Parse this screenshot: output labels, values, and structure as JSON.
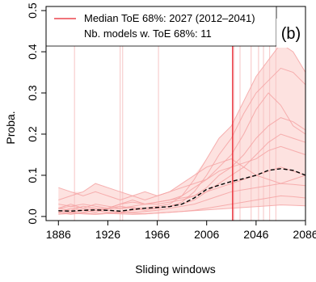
{
  "chart_data": {
    "type": "line",
    "title": "",
    "panel_label": "(b)",
    "xlabel": "Sliding windows",
    "ylabel": "Proba.",
    "xlim": [
      1876,
      2086
    ],
    "ylim": [
      -0.01,
      0.51
    ],
    "x_ticks": [
      1886,
      1926,
      1966,
      2006,
      2046,
      2086
    ],
    "y_ticks": [
      0.0,
      0.1,
      0.2,
      0.3,
      0.4,
      0.5
    ],
    "y_tick_labels": [
      "0.0",
      "0.1",
      "0.2",
      "0.3",
      "0.4",
      "0.5"
    ],
    "grid": false,
    "legend_position": "top-left",
    "legend": [
      "Median ToE 68%: 2027 (2012–2041)",
      "Nb. models w. ToE 68%: 11"
    ],
    "colors": {
      "median_toe_line": "#e8212b",
      "model_lines": "#f4a3a3",
      "toe_lines": "#f6c4c4",
      "band": "#fde2e0",
      "median_curve": "#000000"
    },
    "median_toe": {
      "year": 2027,
      "low": 2012,
      "high": 2041
    },
    "model_toe_years": [
      1899,
      1936,
      1938,
      1967,
      2028,
      2033,
      2042,
      2048,
      2052,
      2057,
      2062
    ],
    "median_curve": {
      "style": "dashed",
      "x": [
        1886,
        1896,
        1906,
        1916,
        1926,
        1936,
        1946,
        1956,
        1966,
        1976,
        1986,
        1996,
        2006,
        2016,
        2026,
        2036,
        2046,
        2056,
        2066,
        2076,
        2086
      ],
      "y": [
        0.014,
        0.013,
        0.015,
        0.016,
        0.015,
        0.013,
        0.017,
        0.02,
        0.022,
        0.024,
        0.03,
        0.045,
        0.066,
        0.076,
        0.085,
        0.092,
        0.1,
        0.112,
        0.116,
        0.112,
        0.1
      ]
    },
    "series": [
      {
        "x": [
          1886,
          1896,
          1906,
          1916,
          1926,
          1936,
          1946,
          1956,
          1966,
          1976,
          1986,
          1996,
          2006,
          2016,
          2026,
          2036,
          2046,
          2056,
          2066,
          2076,
          2086
        ],
        "y": [
          0.02,
          0.015,
          0.025,
          0.02,
          0.018,
          0.02,
          0.022,
          0.02,
          0.025,
          0.03,
          0.05,
          0.09,
          0.14,
          0.19,
          0.22,
          0.28,
          0.34,
          0.38,
          0.42,
          0.4,
          0.35
        ]
      },
      {
        "x": [
          1886,
          1896,
          1906,
          1916,
          1926,
          1936,
          1946,
          1956,
          1966,
          1976,
          1986,
          1996,
          2006,
          2016,
          2026,
          2036,
          2046,
          2056,
          2066,
          2076,
          2086
        ],
        "y": [
          0.01,
          0.02,
          0.015,
          0.01,
          0.02,
          0.025,
          0.02,
          0.015,
          0.02,
          0.025,
          0.035,
          0.06,
          0.1,
          0.15,
          0.19,
          0.25,
          0.3,
          0.33,
          0.36,
          0.35,
          0.32
        ]
      },
      {
        "x": [
          1886,
          1896,
          1906,
          1916,
          1926,
          1936,
          1946,
          1956,
          1966,
          1976,
          1986,
          1996,
          2006,
          2016,
          2026,
          2036,
          2046,
          2056,
          2066,
          2076,
          2086
        ],
        "y": [
          0.03,
          0.025,
          0.02,
          0.03,
          0.025,
          0.02,
          0.025,
          0.03,
          0.035,
          0.04,
          0.05,
          0.07,
          0.09,
          0.12,
          0.15,
          0.2,
          0.26,
          0.3,
          0.27,
          0.22,
          0.2
        ]
      },
      {
        "x": [
          1886,
          1896,
          1906,
          1916,
          1926,
          1936,
          1946,
          1956,
          1966,
          1976,
          1986,
          1996,
          2006,
          2016,
          2026,
          2036,
          2046,
          2056,
          2066,
          2076,
          2086
        ],
        "y": [
          0.02,
          0.03,
          0.02,
          0.015,
          0.02,
          0.03,
          0.04,
          0.03,
          0.03,
          0.035,
          0.04,
          0.05,
          0.07,
          0.1,
          0.12,
          0.15,
          0.19,
          0.22,
          0.24,
          0.23,
          0.21
        ]
      },
      {
        "x": [
          1886,
          1896,
          1906,
          1916,
          1926,
          1936,
          1946,
          1956,
          1966,
          1976,
          1986,
          1996,
          2006,
          2016,
          2026,
          2036,
          2046,
          2056,
          2066,
          2076,
          2086
        ],
        "y": [
          0.015,
          0.01,
          0.015,
          0.02,
          0.015,
          0.01,
          0.015,
          0.02,
          0.02,
          0.025,
          0.03,
          0.04,
          0.06,
          0.08,
          0.1,
          0.12,
          0.15,
          0.18,
          0.2,
          0.19,
          0.18
        ]
      },
      {
        "x": [
          1886,
          1896,
          1906,
          1916,
          1926,
          1936,
          1946,
          1956,
          1966,
          1976,
          1986,
          1996,
          2006,
          2016,
          2026,
          2036,
          2046,
          2056,
          2066,
          2076,
          2086
        ],
        "y": [
          0.07,
          0.06,
          0.05,
          0.06,
          0.05,
          0.04,
          0.05,
          0.06,
          0.05,
          0.06,
          0.07,
          0.08,
          0.09,
          0.11,
          0.12,
          0.13,
          0.14,
          0.16,
          0.17,
          0.16,
          0.15
        ]
      },
      {
        "x": [
          1886,
          1896,
          1906,
          1916,
          1926,
          1936,
          1946,
          1956,
          1966,
          1976,
          1986,
          1996,
          2006,
          2016,
          2026,
          2036,
          2046,
          2056,
          2066,
          2076,
          2086
        ],
        "y": [
          0.04,
          0.05,
          0.06,
          0.08,
          0.07,
          0.06,
          0.05,
          0.04,
          0.05,
          0.06,
          0.08,
          0.1,
          0.12,
          0.13,
          0.14,
          0.12,
          0.1,
          0.09,
          0.08,
          0.09,
          0.1
        ]
      },
      {
        "x": [
          1886,
          1896,
          1906,
          1916,
          1926,
          1936,
          1946,
          1956,
          1966,
          1976,
          1986,
          1996,
          2006,
          2016,
          2026,
          2036,
          2046,
          2056,
          2066,
          2076,
          2086
        ],
        "y": [
          0.01,
          0.005,
          0.01,
          0.015,
          0.01,
          0.008,
          0.01,
          0.012,
          0.015,
          0.02,
          0.025,
          0.03,
          0.04,
          0.05,
          0.06,
          0.065,
          0.07,
          0.075,
          0.08,
          0.078,
          0.075
        ]
      },
      {
        "x": [
          1886,
          1896,
          1906,
          1916,
          1926,
          1936,
          1946,
          1956,
          1966,
          1976,
          1986,
          1996,
          2006,
          2016,
          2026,
          2036,
          2046,
          2056,
          2066,
          2076,
          2086
        ],
        "y": [
          0.005,
          0.008,
          0.006,
          0.005,
          0.007,
          0.006,
          0.005,
          0.006,
          0.008,
          0.01,
          0.012,
          0.015,
          0.02,
          0.025,
          0.03,
          0.035,
          0.04,
          0.045,
          0.05,
          0.048,
          0.045
        ]
      },
      {
        "x": [
          1886,
          1896,
          1906,
          1916,
          1926,
          1936,
          1946,
          1956,
          1966,
          1976,
          1986,
          1996,
          2006,
          2016,
          2026,
          2036,
          2046,
          2056,
          2066,
          2076,
          2086
        ],
        "y": [
          0.02,
          0.025,
          0.03,
          0.025,
          0.02,
          0.03,
          0.035,
          0.03,
          0.035,
          0.04,
          0.045,
          0.05,
          0.06,
          0.07,
          0.08,
          0.09,
          0.1,
          0.11,
          0.12,
          0.11,
          0.1
        ]
      },
      {
        "x": [
          1886,
          1896,
          1906,
          1916,
          1926,
          1936,
          1946,
          1956,
          1966,
          1976,
          1986,
          1996,
          2006,
          2016,
          2026,
          2036,
          2046,
          2056,
          2066,
          2076,
          2086
        ],
        "y": [
          0.008,
          0.01,
          0.008,
          0.006,
          0.008,
          0.01,
          0.008,
          0.006,
          0.008,
          0.01,
          0.012,
          0.014,
          0.016,
          0.018,
          0.02,
          0.022,
          0.024,
          0.026,
          0.028,
          0.027,
          0.026
        ]
      }
    ]
  }
}
